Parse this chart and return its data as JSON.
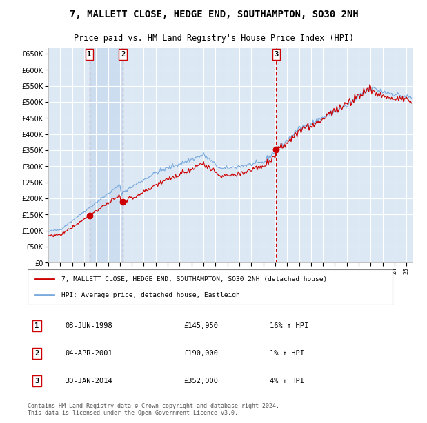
{
  "title": "7, MALLETT CLOSE, HEDGE END, SOUTHAMPTON, SO30 2NH",
  "subtitle": "Price paid vs. HM Land Registry's House Price Index (HPI)",
  "title_fontsize": 10,
  "subtitle_fontsize": 8.5,
  "plot_bg_color": "#dce9f5",
  "grid_color": "#ffffff",
  "legend_label_red": "7, MALLETT CLOSE, HEDGE END, SOUTHAMPTON, SO30 2NH (detached house)",
  "legend_label_blue": "HPI: Average price, detached house, Eastleigh",
  "transactions": [
    {
      "date": 1998.44,
      "price": 145950,
      "label": "1"
    },
    {
      "date": 2001.25,
      "price": 190000,
      "label": "2"
    },
    {
      "date": 2014.08,
      "price": 352000,
      "label": "3"
    }
  ],
  "transaction_details": [
    {
      "label": "1",
      "date": "08-JUN-1998",
      "price": "£145,950",
      "hpi": "16% ↑ HPI"
    },
    {
      "label": "2",
      "date": "04-APR-2001",
      "price": "£190,000",
      "hpi": "1% ↑ HPI"
    },
    {
      "label": "3",
      "date": "30-JAN-2014",
      "price": "£352,000",
      "hpi": "4% ↑ HPI"
    }
  ],
  "footer": "Contains HM Land Registry data © Crown copyright and database right 2024.\nThis data is licensed under the Open Government Licence v3.0.",
  "ylim": [
    0,
    670000
  ],
  "yticks": [
    0,
    50000,
    100000,
    150000,
    200000,
    250000,
    300000,
    350000,
    400000,
    450000,
    500000,
    550000,
    600000,
    650000
  ],
  "xlim_start": 1995.0,
  "xlim_end": 2025.5,
  "shaded_region": [
    1998.44,
    2001.25
  ],
  "red_line_color": "#cc0000",
  "blue_line_color": "#7aaadd",
  "dot_color": "#cc0000",
  "vline_color": "#cc0000"
}
